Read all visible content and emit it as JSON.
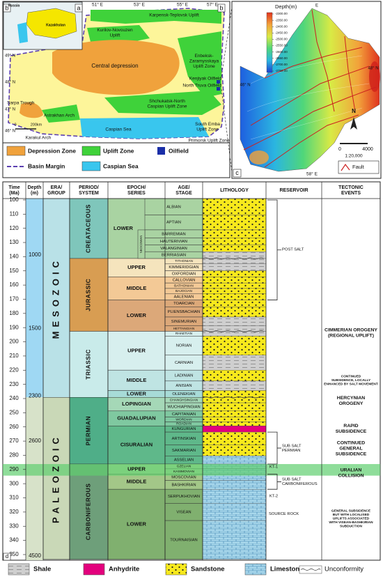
{
  "map_a": {
    "panel_letters": [
      "b",
      "a",
      "b"
    ],
    "inset_labels": [
      "Russia",
      "Kazakhstan"
    ],
    "lon_labels": [
      "51° E",
      "53° E",
      "55° E",
      "57° E"
    ],
    "lat_labels": [
      "49° N",
      "48° N",
      "47° N",
      "46° N"
    ],
    "features": [
      [
        "Karpensk-Teplovsk Uplift"
      ],
      [
        "Kurilov-Novouzen",
        "Uplift"
      ],
      [
        "Central depression"
      ],
      [
        "Enbeksk-",
        "Zaramysskaya",
        "Uplift Zone"
      ],
      [
        "Kenjiyak Oilfield"
      ],
      [
        "North Truva Oilfield"
      ],
      [
        "Shchukatsk-North",
        "Caspian Uplift Zone"
      ],
      [
        "Sarpa Trough"
      ],
      [
        "Astrakhan Arch"
      ],
      [
        "Karakul Arch"
      ],
      [
        "Caspian Sea"
      ],
      [
        "South Emba",
        "Uplift Zone"
      ],
      [
        "Primorsk Uplift Zone"
      ]
    ],
    "scale": [
      "0",
      "200km"
    ],
    "legend": [
      "Depression Zone",
      "Uplift Zone",
      "Oilfield",
      "Basin Margin",
      "Caspian Sea"
    ]
  },
  "map_c": {
    "panel_letter": "c",
    "colorbar_title": "Depth(m)",
    "colorbar_ticks": [
      {
        "value": -2300,
        "label": "-2300.00"
      },
      {
        "value": -2350,
        "label": "-2350.00"
      },
      {
        "value": -2400,
        "label": "-2400.00"
      },
      {
        "value": -2450,
        "label": "-2450.00"
      },
      {
        "value": -2500,
        "label": "-2500.00"
      },
      {
        "value": -2550,
        "label": "-2550.00"
      },
      {
        "value": -2600,
        "label": "-2600.00"
      },
      {
        "value": -2650,
        "label": "-2650.00"
      },
      {
        "value": -2700,
        "label": "-2700.00"
      },
      {
        "value": -2750,
        "label": "-2750.00"
      }
    ],
    "lon_labels": [
      "E",
      "58° E"
    ],
    "lat_labels": [
      "48° N",
      "46° N"
    ],
    "north": "N",
    "scale": [
      "0",
      "4000"
    ],
    "ratio": "1:20,000",
    "legend": "Fault"
  },
  "column": {
    "panel_letter": "d",
    "headers": [
      [
        "Time",
        "(Ma)"
      ],
      [
        "Depth",
        "(m)"
      ],
      [
        "ERA/",
        "GROUP"
      ],
      [
        "PERIOD/",
        "SYSTEM"
      ],
      [
        "EPOCH/",
        "SERIES"
      ],
      [
        "AGE/",
        "STAGE"
      ],
      [
        "LITHOLOGY"
      ],
      [
        "RESERVOIR"
      ],
      [
        "TECTONIC",
        "EVENTS"
      ]
    ],
    "time_ticks": [
      100,
      110,
      120,
      130,
      140,
      150,
      160,
      170,
      180,
      190,
      200,
      210,
      220,
      230,
      240,
      250,
      260,
      270,
      280,
      290,
      300,
      310,
      320,
      330,
      340,
      350
    ],
    "depths": [
      1000,
      1500,
      2300,
      2600,
      4500
    ],
    "eras": [
      "MESOZOIC",
      "PALEOZOIC"
    ],
    "periods": [
      "CREATACEOUS",
      "JURASSIC",
      "TRIASSIC",
      "PERMIAN",
      "CARBONIFEROUS"
    ],
    "epochs": [
      "LOWER",
      "UPPER",
      "MIDDLE",
      "LOWER",
      "UPPER",
      "MIDDLE",
      "LOWER",
      "LOPINGIAN",
      "GUADALUPIAN",
      "CISURALIAN",
      "UPPER",
      "MIDDLE",
      "LOWER"
    ],
    "subseries": "NEOCOMIAN",
    "stages": [
      "ALBIAN",
      "APTIAN",
      "BARREMIAN",
      "HAUTERIVIAN",
      "VALANGINIAN",
      "BERRIASIAN",
      "TITHONIAN",
      "KIMMERIDGIAN",
      "OXFORDIAN",
      "CALLOVIAN",
      "BATHONIAN",
      "BAJOCIAN",
      "AALENIAN",
      "TOARCIAN",
      "PLIENSBACHIAN",
      "SINEMURIAN",
      "HETTANGIAN",
      "RHAETIAN",
      "NORIAN",
      "CARNIAN",
      "LADINIAN",
      "ANISIAN",
      "OLENEKIAN",
      "CHANGHSINGIAN",
      "WUCHIAPINGIAN",
      "CAPITANIAN",
      "WORDIAN",
      "ROADIAN",
      "KUNGURIAN",
      "ARTINSKIAN",
      "SAKMARIAN",
      "ASSELIAN",
      "GZELIAN",
      "KASIMOVIAN",
      "MOSCOVIAN",
      "BASHKIRIAN",
      "SERPUKHOVIAN",
      "VISEAN",
      "TOURNAISIAN"
    ],
    "reservoir": [
      [
        "POST SALT"
      ],
      [
        "SUB SALT",
        "PERMIAN"
      ],
      [
        "KT-1"
      ],
      [
        "SUB SALT",
        "CARBONIFEROUS"
      ],
      [
        "KT-2"
      ],
      [
        "SOURCE ROCK"
      ]
    ],
    "tectonics": [
      [
        "CIMMERIAN OROGENY",
        "(REGIONAL UPLIFT)"
      ],
      [
        "CONTINUED",
        "SUBSIDENCE, LOCALLY",
        "ENHANCED BY SALT MOVEMENT"
      ],
      [
        "HERCYNIAN",
        "OROGENY"
      ],
      [
        "RAPID",
        "SUBSIDENCE"
      ],
      [
        "CONTINUED",
        "GENERAL",
        "SUBSIDENCE"
      ],
      [
        "URALIAN",
        "COLLISION"
      ],
      [
        "GENERAL SUBSIDENCE",
        "BUT WITH LOCALISED",
        "UPLIFTS ASSOCIATED",
        "WITH VISEAN-BASHKIRIAN",
        "SUBDUCTION"
      ]
    ],
    "legend": [
      "Shale",
      "Anhydrite",
      "Sandstone",
      "Limestone",
      "Unconformity"
    ]
  }
}
